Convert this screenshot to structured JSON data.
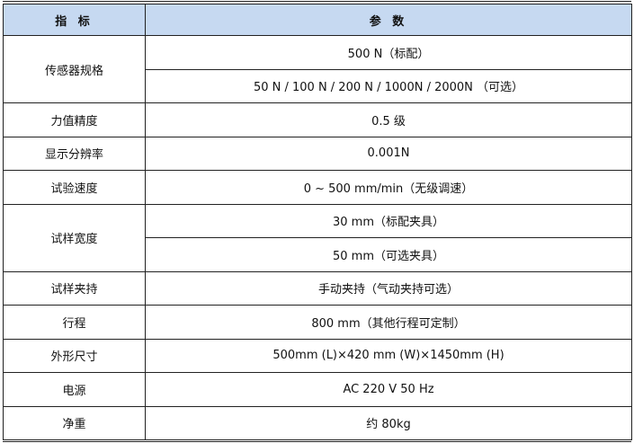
{
  "header": {
    "col1": "指 标",
    "col2": "参 数"
  },
  "header_color": "#c6d9f1",
  "rows": [
    {
      "label": "传感器规格",
      "values": [
        "500 N（标配）",
        "50 N / 100 N / 200 N / 1000N / 2000N （可选）"
      ]
    },
    {
      "label": "力值精度",
      "values": [
        "0.5 级"
      ]
    },
    {
      "label": "显示分辨率",
      "values": [
        "0.001N"
      ]
    },
    {
      "label": "试验速度",
      "values": [
        "0 ~ 500 mm/min（无级调速）"
      ]
    },
    {
      "label": "试样宽度",
      "values": [
        "30 mm（标配夹具）",
        "50 mm（可选夹具）"
      ]
    },
    {
      "label": "试样夹持",
      "values": [
        "手动夹持（气动夹持可选）"
      ]
    },
    {
      "label": "行程",
      "values": [
        "800 mm（其他行程可定制）"
      ]
    },
    {
      "label": "外形尺寸",
      "values": [
        "500mm (L)×420 mm (W)×1450mm (H)"
      ]
    },
    {
      "label": "电源",
      "values": [
        "AC 220 V 50 Hz"
      ]
    },
    {
      "label": "净重",
      "values": [
        "约 80kg"
      ]
    }
  ]
}
